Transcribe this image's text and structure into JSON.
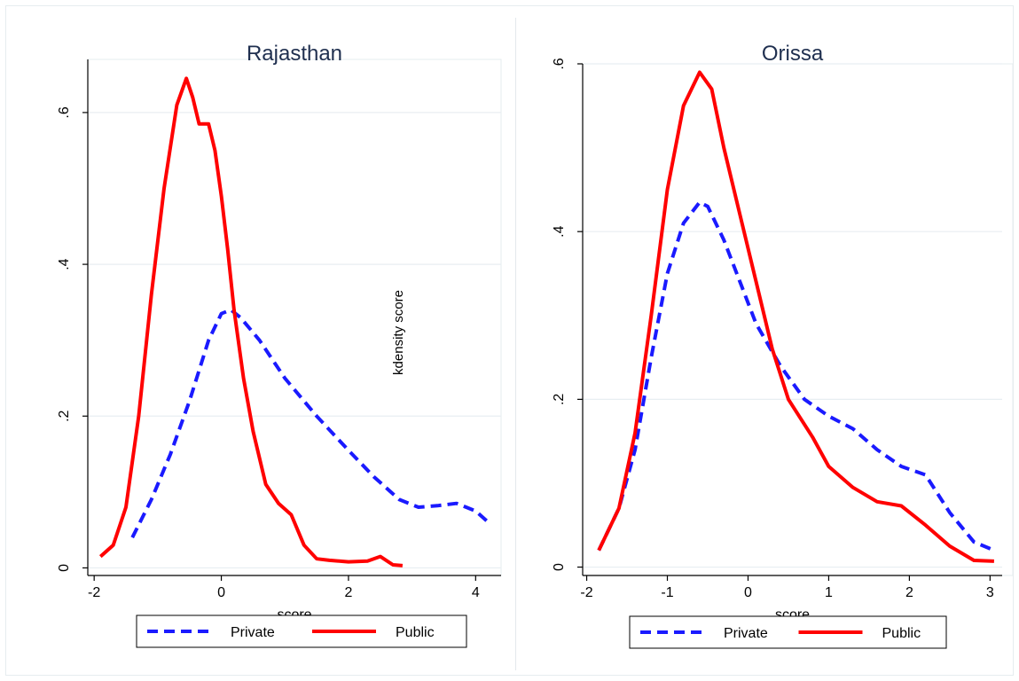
{
  "chart_data": [
    {
      "type": "line",
      "title": "Rajasthan",
      "xlabel": "score",
      "ylabel": "",
      "xlim": [
        -2.1,
        4.4
      ],
      "ylim": [
        -0.01,
        0.67
      ],
      "xticks": [
        -2,
        0,
        2,
        4
      ],
      "xtick_labels": [
        "-2",
        "0",
        "2",
        "4"
      ],
      "yticks": [
        0,
        0.2,
        0.4,
        0.6
      ],
      "ytick_labels": [
        "0",
        ".2",
        ".4",
        ".6"
      ],
      "grid": true,
      "legend_position": "bottom",
      "annotations": [
        "kdensity score"
      ],
      "series": [
        {
          "name": "Private",
          "color": "#1a1aff",
          "dash": "dashed",
          "x": [
            -1.4,
            -1.1,
            -0.8,
            -0.5,
            -0.2,
            0.0,
            0.15,
            0.3,
            0.6,
            1.0,
            1.5,
            2.0,
            2.4,
            2.8,
            3.1,
            3.4,
            3.7,
            4.0,
            4.2
          ],
          "y": [
            0.04,
            0.09,
            0.15,
            0.22,
            0.3,
            0.335,
            0.34,
            0.33,
            0.3,
            0.25,
            0.2,
            0.155,
            0.12,
            0.09,
            0.08,
            0.082,
            0.085,
            0.075,
            0.06
          ]
        },
        {
          "name": "Public",
          "color": "#ff0000",
          "dash": "solid",
          "x": [
            -1.9,
            -1.7,
            -1.5,
            -1.3,
            -1.1,
            -0.9,
            -0.7,
            -0.55,
            -0.45,
            -0.35,
            -0.2,
            -0.1,
            0.0,
            0.1,
            0.2,
            0.35,
            0.5,
            0.7,
            0.9,
            1.1,
            1.3,
            1.5,
            1.7,
            2.0,
            2.3,
            2.5,
            2.7,
            2.85
          ],
          "y": [
            0.015,
            0.03,
            0.08,
            0.2,
            0.36,
            0.5,
            0.61,
            0.645,
            0.62,
            0.585,
            0.585,
            0.55,
            0.49,
            0.42,
            0.34,
            0.25,
            0.18,
            0.11,
            0.085,
            0.07,
            0.03,
            0.012,
            0.01,
            0.008,
            0.009,
            0.015,
            0.004,
            0.003
          ]
        }
      ]
    },
    {
      "type": "line",
      "title": "Orissa",
      "xlabel": "score",
      "ylabel": "",
      "xlim": [
        -2.05,
        3.15
      ],
      "ylim": [
        -0.01,
        0.6
      ],
      "xticks": [
        -2,
        -1,
        0,
        1,
        2,
        3
      ],
      "xtick_labels": [
        "-2",
        "-1",
        "0",
        "1",
        "2",
        "3"
      ],
      "yticks": [
        0,
        0.2,
        0.4,
        0.6
      ],
      "ytick_labels": [
        "0",
        ".2",
        ".4",
        ".6"
      ],
      "grid": true,
      "legend_position": "bottom",
      "series": [
        {
          "name": "Private",
          "color": "#1a1aff",
          "dash": "dashed",
          "x": [
            -1.85,
            -1.6,
            -1.4,
            -1.2,
            -1.0,
            -0.8,
            -0.6,
            -0.5,
            -0.3,
            -0.1,
            0.1,
            0.4,
            0.7,
            1.0,
            1.3,
            1.6,
            1.9,
            2.2,
            2.5,
            2.8,
            3.05
          ],
          "y": [
            0.02,
            0.07,
            0.14,
            0.25,
            0.35,
            0.41,
            0.435,
            0.43,
            0.39,
            0.34,
            0.29,
            0.24,
            0.2,
            0.18,
            0.165,
            0.14,
            0.12,
            0.11,
            0.065,
            0.03,
            0.02
          ]
        },
        {
          "name": "Public",
          "color": "#ff0000",
          "dash": "solid",
          "x": [
            -1.85,
            -1.6,
            -1.4,
            -1.2,
            -1.0,
            -0.8,
            -0.6,
            -0.45,
            -0.3,
            -0.1,
            0.1,
            0.3,
            0.5,
            0.8,
            1.0,
            1.3,
            1.6,
            1.9,
            2.2,
            2.5,
            2.8,
            3.05
          ],
          "y": [
            0.02,
            0.07,
            0.16,
            0.3,
            0.45,
            0.55,
            0.59,
            0.57,
            0.5,
            0.42,
            0.34,
            0.26,
            0.2,
            0.155,
            0.12,
            0.095,
            0.078,
            0.073,
            0.05,
            0.025,
            0.008,
            0.007
          ]
        }
      ]
    }
  ]
}
